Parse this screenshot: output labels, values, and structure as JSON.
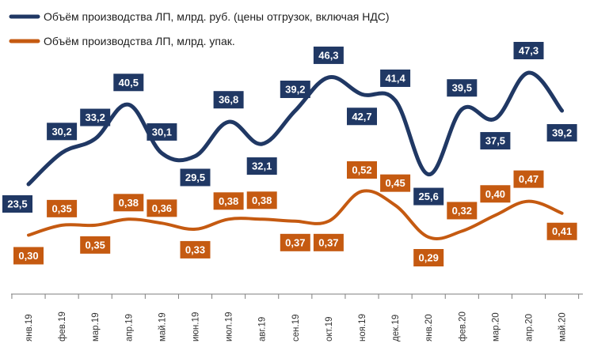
{
  "chart_data": {
    "type": "line",
    "categories": [
      "янв.19",
      "фев.19",
      "мар.19",
      "апр.19",
      "май.19",
      "июн.19",
      "июл.19",
      "авг.19",
      "сен.19",
      "окт.19",
      "ноя.19",
      "дек.19",
      "янв.20",
      "фев.20",
      "мар.20",
      "апр.20",
      "май.20"
    ],
    "series": [
      {
        "name": "Объём производства ЛП, млрд. руб. (цены отгрузок, включая НДС)",
        "color": "#203864",
        "values": [
          23.5,
          30.2,
          33.2,
          40.5,
          30.1,
          29.5,
          36.8,
          32.1,
          39.2,
          46.3,
          42.7,
          41.4,
          25.6,
          39.5,
          37.5,
          47.3,
          39.2
        ],
        "labels": [
          "23,5",
          "30,2",
          "33,2",
          "40,5",
          "30,1",
          "29,5",
          "36,8",
          "32,1",
          "39,2",
          "46,3",
          "42,7",
          "41,4",
          "25,6",
          "39,5",
          "37,5",
          "47,3",
          "39,2"
        ]
      },
      {
        "name": "Объём производства ЛП, млрд. упак.",
        "color": "#C55A11",
        "values": [
          0.3,
          0.35,
          0.35,
          0.38,
          0.36,
          0.33,
          0.38,
          0.38,
          0.37,
          0.37,
          0.52,
          0.45,
          0.29,
          0.32,
          0.4,
          0.47,
          0.41
        ],
        "labels": [
          "0,30",
          "0,35",
          "0,35",
          "0,38",
          "0,36",
          "0,33",
          "0,38",
          "0,38",
          "0,37",
          "0,37",
          "0,52",
          "0,45",
          "0,29",
          "0,32",
          "0,40",
          "0,47",
          "0,41"
        ]
      }
    ],
    "legend_position": "top-left",
    "grid": false
  }
}
